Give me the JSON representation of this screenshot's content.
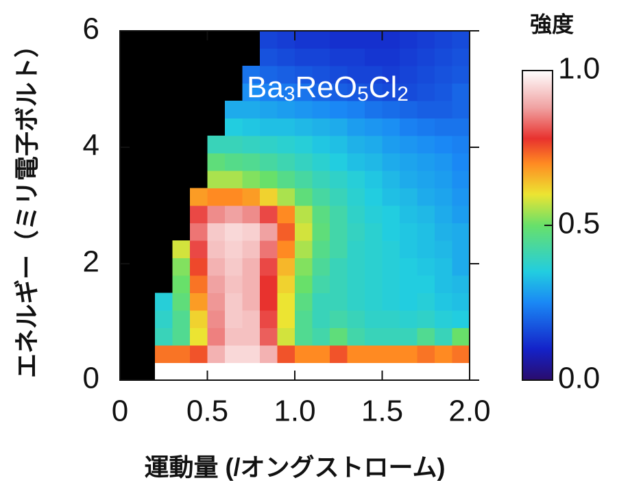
{
  "chart_data": {
    "type": "heatmap",
    "annotation": "Ba3ReO5Cl2",
    "xlabel": "運動量 (/オングストローム)",
    "ylabel": "エネルギー（ミリ電子ボルト）",
    "colorbar_label": "強度",
    "xlim": [
      0,
      2
    ],
    "ylim": [
      0,
      6
    ],
    "xticks": [
      0,
      0.5,
      {
        "value": 1,
        "label": "1.0"
      },
      1.5,
      {
        "value": 2,
        "label": "2.0"
      }
    ],
    "yticks": [
      0,
      2,
      4,
      6
    ],
    "clim": [
      0,
      1
    ],
    "cticks": [
      {
        "value": 0,
        "label": "0.0"
      },
      0.5,
      {
        "value": 1,
        "label": "1.0"
      }
    ],
    "colormap": [
      [
        0,
        "#2a0c6c"
      ],
      [
        0.1,
        "#1422c8"
      ],
      [
        0.25,
        "#1a88f5"
      ],
      [
        0.35,
        "#22cde0"
      ],
      [
        0.5,
        "#68e06a"
      ],
      [
        0.6,
        "#ece432"
      ],
      [
        0.7,
        "#ff8a22"
      ],
      [
        0.78,
        "#e8322e"
      ],
      [
        0.88,
        "#f0a2a2"
      ],
      [
        1,
        "#ffffff"
      ]
    ],
    "xbins": [
      0,
      0.1,
      0.2,
      0.3,
      0.4,
      0.5,
      0.6,
      0.7,
      0.8,
      0.9,
      1,
      1.1,
      1.2,
      1.3,
      1.4,
      1.5,
      1.6,
      1.7,
      1.8,
      1.9,
      2
    ],
    "ybins": [
      0,
      0.3,
      0.6,
      0.9,
      1.2,
      1.5,
      1.8,
      2.1,
      2.4,
      2.7,
      3,
      3.3,
      3.6,
      3.9,
      4.2,
      4.5,
      4.8,
      5.1,
      5.4,
      5.7,
      6
    ],
    "z": [
      [
        null,
        null,
        1,
        1,
        1,
        1,
        1,
        1,
        1,
        1,
        1,
        1,
        1,
        1,
        1,
        1,
        1,
        1,
        1,
        1
      ],
      [
        null,
        null,
        0.72,
        0.72,
        0.75,
        0.9,
        0.95,
        0.95,
        0.9,
        0.75,
        0.7,
        0.7,
        0.75,
        0.7,
        0.7,
        0.7,
        0.7,
        0.72,
        0.7,
        0.72
      ],
      [
        null,
        null,
        0.4,
        0.45,
        0.6,
        0.85,
        0.92,
        0.92,
        0.82,
        0.58,
        0.45,
        0.42,
        0.48,
        0.42,
        0.4,
        0.4,
        0.4,
        0.45,
        0.4,
        0.5
      ],
      [
        null,
        null,
        0.38,
        0.45,
        0.62,
        0.86,
        0.93,
        0.92,
        0.8,
        0.6,
        0.45,
        0.4,
        0.42,
        0.4,
        0.38,
        0.38,
        0.37,
        0.38,
        0.36,
        0.35
      ],
      [
        null,
        null,
        0.36,
        0.48,
        0.68,
        0.87,
        0.93,
        0.9,
        0.78,
        0.6,
        0.47,
        0.4,
        0.4,
        0.38,
        0.37,
        0.36,
        0.35,
        0.36,
        0.34,
        0.33
      ],
      [
        null,
        null,
        null,
        0.5,
        0.72,
        0.88,
        0.92,
        0.9,
        0.78,
        0.62,
        0.5,
        0.42,
        0.4,
        0.38,
        0.37,
        0.36,
        0.35,
        0.35,
        0.33,
        0.32
      ],
      [
        null,
        null,
        null,
        0.52,
        0.76,
        0.9,
        0.93,
        0.9,
        0.8,
        0.65,
        0.52,
        0.44,
        0.4,
        0.38,
        0.37,
        0.36,
        0.35,
        0.34,
        0.33,
        0.3
      ],
      [
        null,
        null,
        null,
        0.58,
        0.8,
        0.92,
        0.94,
        0.92,
        0.84,
        0.7,
        0.55,
        0.46,
        0.42,
        0.38,
        0.37,
        0.36,
        0.34,
        0.33,
        0.32,
        0.3
      ],
      [
        null,
        null,
        null,
        null,
        0.84,
        0.93,
        0.95,
        0.94,
        0.88,
        0.74,
        0.58,
        0.48,
        0.42,
        0.39,
        0.37,
        0.35,
        0.34,
        0.33,
        0.31,
        0.3
      ],
      [
        null,
        null,
        null,
        null,
        0.8,
        0.86,
        0.88,
        0.86,
        0.8,
        0.7,
        0.56,
        0.47,
        0.42,
        0.38,
        0.36,
        0.35,
        0.33,
        0.32,
        0.3,
        0.28
      ],
      [
        null,
        null,
        null,
        null,
        0.68,
        0.7,
        0.7,
        0.68,
        0.62,
        0.55,
        0.48,
        0.43,
        0.4,
        0.37,
        0.35,
        0.33,
        0.32,
        0.3,
        0.29,
        0.27
      ],
      [
        null,
        null,
        null,
        null,
        null,
        0.55,
        0.55,
        0.52,
        0.5,
        0.46,
        0.43,
        0.4,
        0.38,
        0.36,
        0.34,
        0.32,
        0.3,
        0.29,
        0.28,
        0.26
      ],
      [
        null,
        null,
        null,
        null,
        null,
        0.48,
        0.46,
        0.45,
        0.43,
        0.41,
        0.39,
        0.37,
        0.35,
        0.33,
        0.32,
        0.3,
        0.29,
        0.28,
        0.27,
        0.25
      ],
      [
        null,
        null,
        null,
        null,
        null,
        0.4,
        0.4,
        0.39,
        0.38,
        0.37,
        0.36,
        0.34,
        0.33,
        0.31,
        0.3,
        0.28,
        0.27,
        0.26,
        0.25,
        0.24
      ],
      [
        null,
        null,
        null,
        null,
        null,
        null,
        0.35,
        0.34,
        0.33,
        0.33,
        0.32,
        0.31,
        0.3,
        0.28,
        0.27,
        0.26,
        0.24,
        0.23,
        0.22,
        0.22
      ],
      [
        null,
        null,
        null,
        null,
        null,
        null,
        0.3,
        0.3,
        0.29,
        0.28,
        0.27,
        0.26,
        0.25,
        0.24,
        0.22,
        0.21,
        0.2,
        0.19,
        0.19,
        0.2
      ],
      [
        null,
        null,
        null,
        null,
        null,
        null,
        null,
        0.26,
        0.24,
        0.23,
        0.22,
        0.2,
        0.19,
        0.18,
        0.17,
        0.16,
        0.16,
        0.17,
        0.18,
        0.2
      ],
      [
        null,
        null,
        null,
        null,
        null,
        null,
        null,
        0.22,
        0.2,
        0.19,
        0.18,
        0.17,
        0.16,
        0.15,
        0.15,
        0.14,
        0.15,
        0.16,
        0.17,
        0.18
      ],
      [
        null,
        null,
        null,
        null,
        null,
        null,
        null,
        null,
        0.17,
        0.16,
        0.15,
        0.15,
        0.14,
        0.14,
        0.13,
        0.13,
        0.14,
        0.15,
        0.16,
        0.17
      ],
      [
        null,
        null,
        null,
        null,
        null,
        null,
        null,
        null,
        0.15,
        0.14,
        0.13,
        0.13,
        0.12,
        0.12,
        0.12,
        0.12,
        0.13,
        0.14,
        0.15,
        0.16
      ]
    ]
  }
}
